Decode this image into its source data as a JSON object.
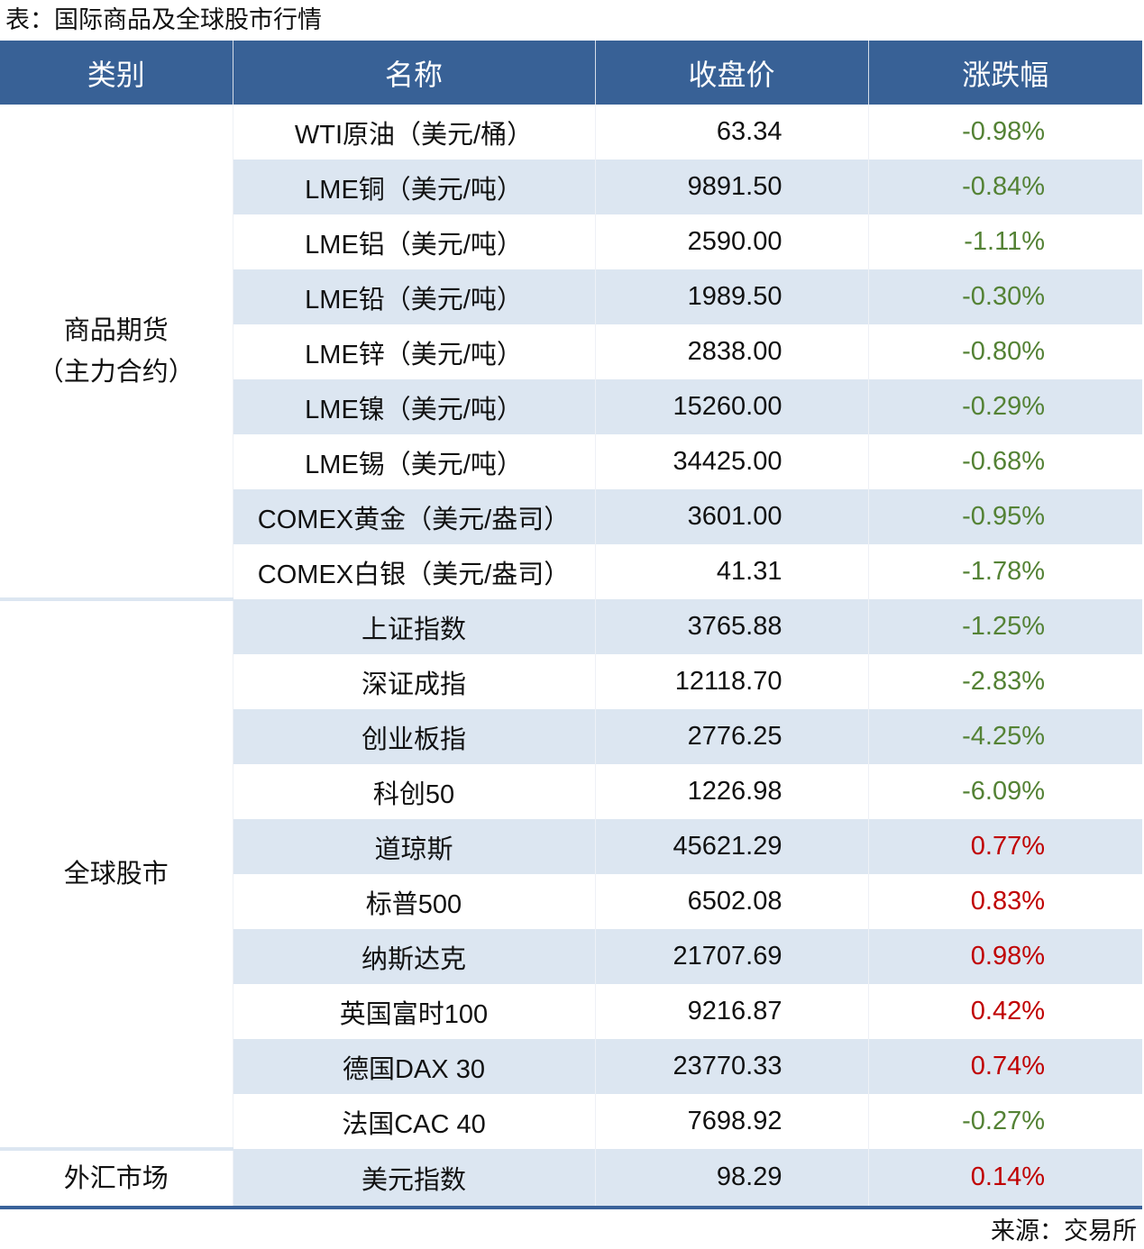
{
  "title": "表：国际商品及全球股市行情",
  "headers": [
    "类别",
    "名称",
    "收盘价",
    "涨跌幅"
  ],
  "colors": {
    "header_bg": "#386196",
    "alt_row_bg": "#dce6f1",
    "up": "#c00000",
    "down": "#548235"
  },
  "groups": [
    {
      "category_lines": [
        "商品期货",
        "（主力合约）"
      ],
      "rows": [
        {
          "name": "WTI原油（美元/桶）",
          "price": "63.34",
          "change": "-0.98%"
        },
        {
          "name": "LME铜（美元/吨）",
          "price": "9891.50",
          "change": "-0.84%"
        },
        {
          "name": "LME铝（美元/吨）",
          "price": "2590.00",
          "change": "-1.11%"
        },
        {
          "name": "LME铅（美元/吨）",
          "price": "1989.50",
          "change": "-0.30%"
        },
        {
          "name": "LME锌（美元/吨）",
          "price": "2838.00",
          "change": "-0.80%"
        },
        {
          "name": "LME镍（美元/吨）",
          "price": "15260.00",
          "change": "-0.29%"
        },
        {
          "name": "LME锡（美元/吨）",
          "price": "34425.00",
          "change": "-0.68%"
        },
        {
          "name": "COMEX黄金（美元/盎司）",
          "price": "3601.00",
          "change": "-0.95%"
        },
        {
          "name": "COMEX白银（美元/盎司）",
          "price": "41.31",
          "change": "-1.78%"
        }
      ]
    },
    {
      "category_lines": [
        "全球股市"
      ],
      "rows": [
        {
          "name": "上证指数",
          "price": "3765.88",
          "change": "-1.25%"
        },
        {
          "name": "深证成指",
          "price": "12118.70",
          "change": "-2.83%"
        },
        {
          "name": "创业板指",
          "price": "2776.25",
          "change": "-4.25%"
        },
        {
          "name": "科创50",
          "price": "1226.98",
          "change": "-6.09%"
        },
        {
          "name": "道琼斯",
          "price": "45621.29",
          "change": "0.77%"
        },
        {
          "name": "标普500",
          "price": "6502.08",
          "change": "0.83%"
        },
        {
          "name": "纳斯达克",
          "price": "21707.69",
          "change": "0.98%"
        },
        {
          "name": "英国富时100",
          "price": "9216.87",
          "change": "0.42%"
        },
        {
          "name": "德国DAX 30",
          "price": "23770.33",
          "change": "0.74%"
        },
        {
          "name": "法国CAC 40",
          "price": "7698.92",
          "change": "-0.27%"
        }
      ]
    },
    {
      "category_lines": [
        "外汇市场"
      ],
      "rows": [
        {
          "name": "美元指数",
          "price": "98.29",
          "change": "0.14%"
        }
      ]
    }
  ],
  "source": "来源：交易所"
}
